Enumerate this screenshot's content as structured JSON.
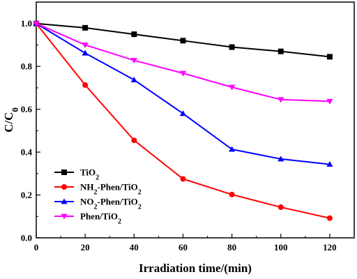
{
  "chart_data": {
    "type": "line",
    "xlabel": "Irradiation time/(min)",
    "ylabel": {
      "main": "C/C",
      "sub": "0"
    },
    "xlim": [
      0,
      130
    ],
    "ylim": [
      0.0,
      1.1
    ],
    "x_ticks": [
      0,
      20,
      40,
      60,
      80,
      100,
      120
    ],
    "y_ticks": [
      0.0,
      0.2,
      0.4,
      0.6,
      0.8,
      1.0
    ],
    "y_tick_labels": [
      "0.0",
      "0.2",
      "0.4",
      "0.6",
      "0.8",
      "1.0"
    ],
    "x": [
      0,
      20,
      40,
      60,
      80,
      100,
      120
    ],
    "grid": false,
    "legend_position": "bottom-left",
    "series": [
      {
        "name": [
          {
            "t": "TiO"
          },
          {
            "t": "2",
            "sub": true
          }
        ],
        "color": "#000000",
        "marker": "square",
        "values": [
          1.0,
          0.98,
          0.95,
          0.92,
          0.89,
          0.87,
          0.845
        ]
      },
      {
        "name": [
          {
            "t": "NH"
          },
          {
            "t": "2",
            "sub": true
          },
          {
            "t": "-Phen/TiO"
          },
          {
            "t": "2",
            "sub": true
          }
        ],
        "color": "#ff0000",
        "marker": "circle",
        "values": [
          1.0,
          0.713,
          0.455,
          0.275,
          0.202,
          0.143,
          0.092
        ]
      },
      {
        "name": [
          {
            "t": "NO"
          },
          {
            "t": "2",
            "sub": true
          },
          {
            "t": "-Phen/TiO"
          },
          {
            "t": "2",
            "sub": true
          }
        ],
        "color": "#0000ff",
        "marker": "triangle-up",
        "values": [
          1.0,
          0.862,
          0.737,
          0.58,
          0.413,
          0.368,
          0.343
        ]
      },
      {
        "name": [
          {
            "t": "Phen/TiO"
          },
          {
            "t": "2",
            "sub": true
          }
        ],
        "color": "#ff00ff",
        "marker": "triangle-down",
        "values": [
          1.0,
          0.9,
          0.828,
          0.768,
          0.703,
          0.645,
          0.637
        ]
      }
    ]
  }
}
